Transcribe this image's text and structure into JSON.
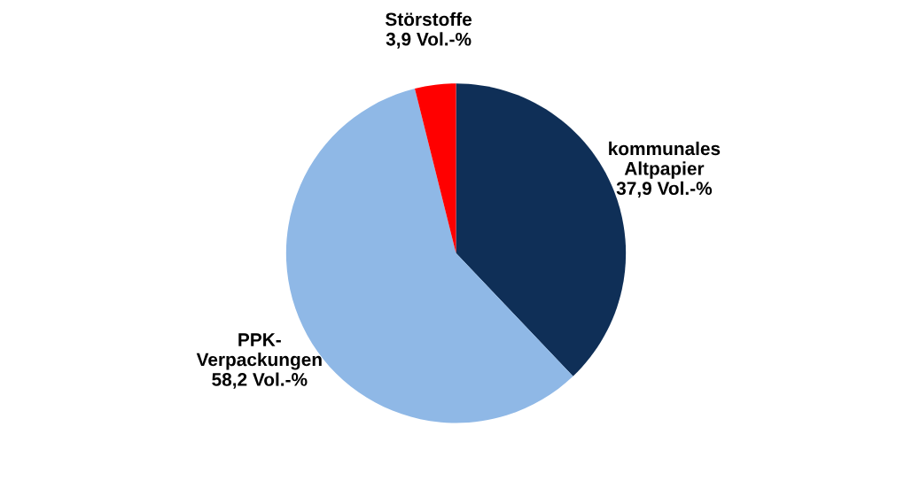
{
  "chart_data": {
    "type": "pie",
    "categories": [
      "kommunales\nAltpapier",
      "PPK-\nVerpackungen",
      "Störstoffe"
    ],
    "values": [
      37.9,
      58.2,
      3.9
    ],
    "colors": [
      "#0f2f57",
      "#8fb8e6",
      "#ff0000"
    ],
    "value_labels": [
      "37,9 Vol.-%",
      "58,2 Vol.-%",
      "3,9 Vol.-%"
    ],
    "legend": false
  }
}
